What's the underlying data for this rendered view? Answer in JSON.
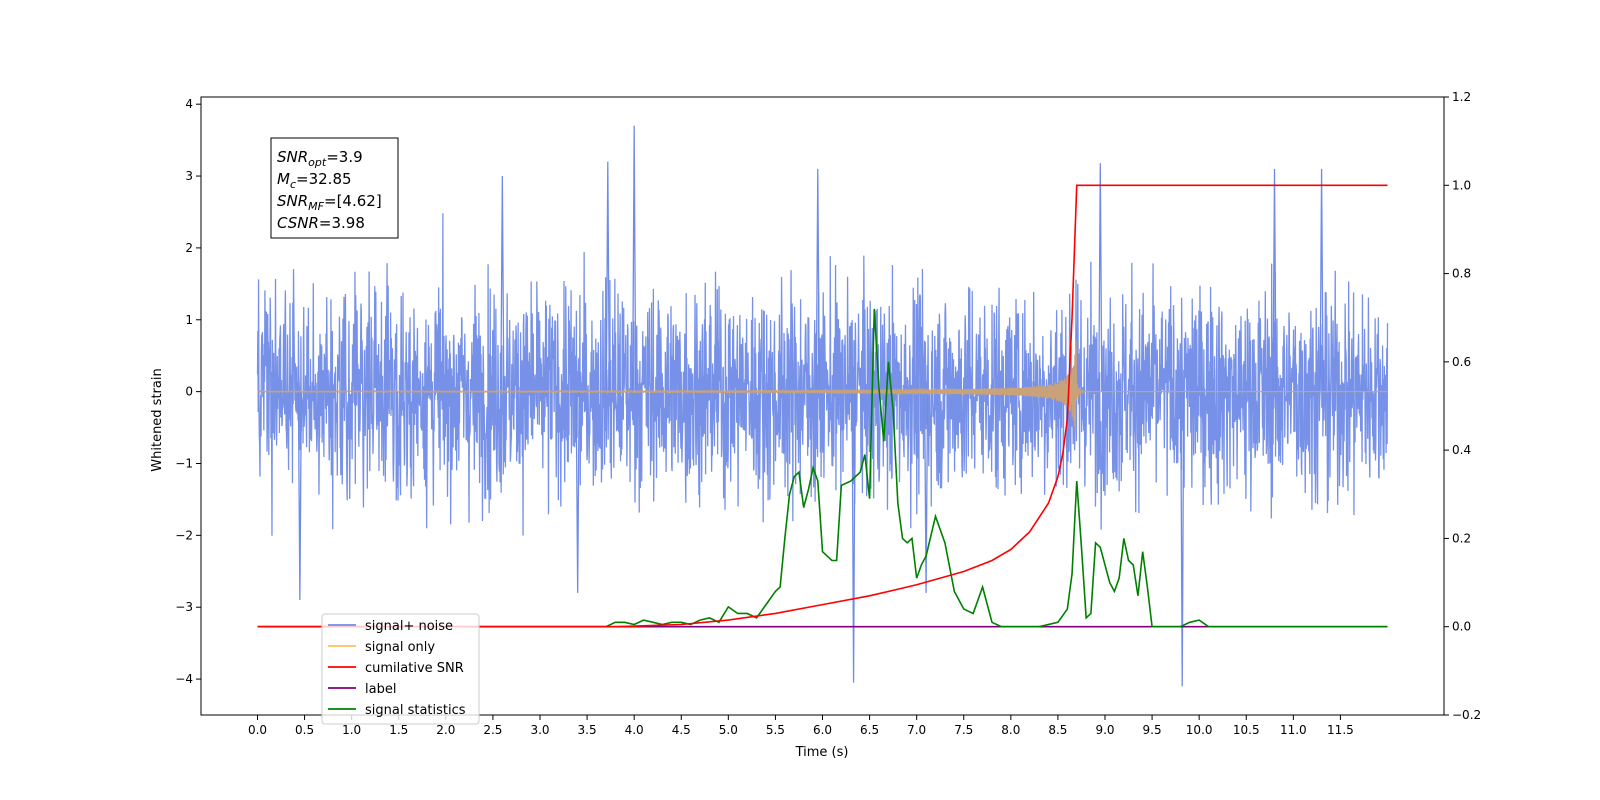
{
  "chart_data": {
    "type": "line",
    "xlabel": "Time (s)",
    "ylabel": "Whitened strain",
    "xlim": [
      -0.6,
      12.6
    ],
    "ylim": [
      -4.5,
      4.1
    ],
    "y2lim": [
      -0.2,
      1.2
    ],
    "x_ticks": [
      "0.0",
      "0.5",
      "1.0",
      "1.5",
      "2.0",
      "2.5",
      "3.0",
      "3.5",
      "4.0",
      "4.5",
      "5.0",
      "5.5",
      "6.0",
      "6.5",
      "7.0",
      "7.5",
      "8.0",
      "8.5",
      "9.0",
      "9.5",
      "10.0",
      "10.5",
      "11.0",
      "11.5"
    ],
    "y_ticks": [
      "4",
      "3",
      "2",
      "1",
      "0",
      "−1",
      "−2",
      "−3",
      "−4"
    ],
    "y2_ticks": [
      "1.2",
      "1.0",
      "0.8",
      "0.6",
      "0.4",
      "0.2",
      "0.0",
      "−0.2"
    ],
    "annotation": [
      {
        "main": "SNR",
        "sub": "opt",
        "rest": "=3.9"
      },
      {
        "main": "M",
        "sub": "c",
        "rest": "=32.85"
      },
      {
        "main": "SNR",
        "sub": "MF",
        "rest": "=[4.62]"
      },
      {
        "main": "CSNR",
        "sub": "",
        "rest": "=3.98"
      }
    ],
    "legend_position": "lower-left",
    "series": [
      {
        "name": "signal+ noise",
        "color": "#6f8be6",
        "description_values": "noise band approx -2 to 2, peaks to 3.7 and -4.1",
        "x_range": [
          0.0,
          12.0
        ]
      },
      {
        "name": "signal only",
        "color": "#ffbf5f",
        "chirp_merger_time": 8.7,
        "peak_amplitude": 0.95
      },
      {
        "name": "cumilative SNR",
        "color": "#ff0000",
        "axis": "right",
        "x": [
          0.0,
          3.8,
          4.5,
          5.0,
          5.5,
          6.0,
          6.5,
          7.0,
          7.5,
          7.8,
          8.0,
          8.2,
          8.4,
          8.5,
          8.55,
          8.6,
          8.65,
          8.7,
          12.0
        ],
        "values": [
          0.0,
          0.0,
          0.005,
          0.015,
          0.03,
          0.05,
          0.07,
          0.095,
          0.125,
          0.15,
          0.175,
          0.215,
          0.28,
          0.34,
          0.39,
          0.47,
          0.7,
          1.0,
          1.0
        ]
      },
      {
        "name": "label",
        "color": "#800080",
        "axis": "right",
        "x": [
          0.0,
          12.0
        ],
        "values": [
          0.0,
          0.0
        ]
      },
      {
        "name": "signal statistics",
        "color": "#008000",
        "axis": "right",
        "x": [
          0.0,
          3.7,
          3.8,
          3.9,
          4.0,
          4.1,
          4.2,
          4.3,
          4.4,
          4.5,
          4.6,
          4.7,
          4.8,
          4.9,
          5.0,
          5.1,
          5.2,
          5.3,
          5.4,
          5.5,
          5.55,
          5.6,
          5.65,
          5.7,
          5.75,
          5.8,
          5.85,
          5.9,
          5.95,
          6.0,
          6.05,
          6.1,
          6.15,
          6.2,
          6.3,
          6.35,
          6.4,
          6.45,
          6.5,
          6.55,
          6.6,
          6.65,
          6.7,
          6.75,
          6.8,
          6.85,
          6.9,
          6.95,
          7.0,
          7.05,
          7.1,
          7.2,
          7.3,
          7.4,
          7.5,
          7.6,
          7.7,
          7.8,
          7.9,
          8.0,
          8.3,
          8.5,
          8.6,
          8.65,
          8.7,
          8.75,
          8.8,
          8.85,
          8.9,
          8.95,
          9.0,
          9.05,
          9.1,
          9.15,
          9.2,
          9.25,
          9.3,
          9.35,
          9.4,
          9.45,
          9.5,
          9.6,
          9.8,
          9.9,
          10.0,
          10.1,
          12.0
        ],
        "values": [
          0.0,
          0.0,
          0.01,
          0.01,
          0.005,
          0.015,
          0.01,
          0.005,
          0.01,
          0.01,
          0.005,
          0.015,
          0.02,
          0.01,
          0.045,
          0.03,
          0.03,
          0.02,
          0.05,
          0.08,
          0.09,
          0.2,
          0.3,
          0.34,
          0.35,
          0.27,
          0.31,
          0.36,
          0.33,
          0.17,
          0.16,
          0.15,
          0.15,
          0.32,
          0.33,
          0.34,
          0.35,
          0.39,
          0.29,
          0.72,
          0.54,
          0.42,
          0.6,
          0.49,
          0.28,
          0.2,
          0.19,
          0.2,
          0.11,
          0.14,
          0.16,
          0.25,
          0.19,
          0.08,
          0.04,
          0.03,
          0.09,
          0.01,
          0.0,
          0.0,
          0.0,
          0.01,
          0.04,
          0.12,
          0.33,
          0.18,
          0.02,
          0.03,
          0.19,
          0.18,
          0.14,
          0.1,
          0.08,
          0.11,
          0.2,
          0.15,
          0.14,
          0.07,
          0.17,
          0.09,
          0.0,
          0.0,
          0.0,
          0.01,
          0.015,
          0.0,
          0.0
        ]
      }
    ]
  }
}
